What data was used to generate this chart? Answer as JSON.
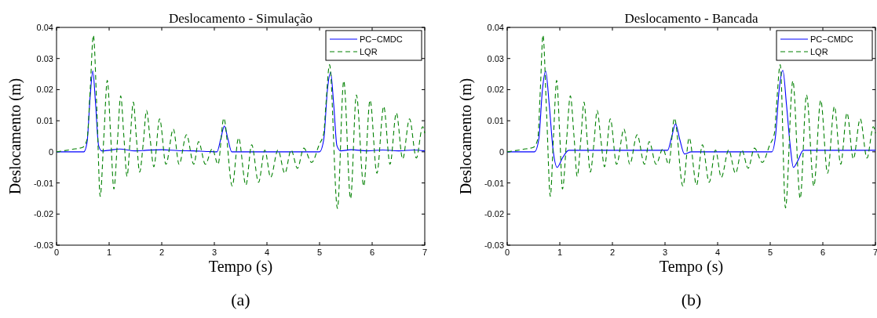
{
  "chart_data": [
    {
      "type": "line",
      "title": "Deslocamento - Simulação",
      "xlabel": "Tempo (s)",
      "ylabel": "Deslocamento (m)",
      "annotations": [
        "(a)"
      ],
      "xlim": [
        0,
        7
      ],
      "xticks": [
        0,
        1,
        2,
        3,
        4,
        5,
        6,
        7
      ],
      "ylim": [
        -0.03,
        0.04
      ],
      "yticks": [
        -0.03,
        -0.02,
        -0.01,
        0,
        0.01,
        0.02,
        0.03,
        0.04
      ],
      "legend": "top right",
      "grid": false,
      "series": [
        {
          "name": "PC−CMDC",
          "color": "#0000ff",
          "line_style": "solid",
          "x": [
            0,
            0.52,
            0.58,
            0.64,
            0.69,
            0.74,
            0.8,
            0.86,
            1.0,
            1.2,
            1.5,
            1.7,
            2.0,
            2.3,
            2.6,
            2.9,
            3.05,
            3.12,
            3.19,
            3.26,
            3.33,
            4,
            5.0,
            5.08,
            5.15,
            5.21,
            5.27,
            5.33,
            5.4,
            5.6,
            5.9,
            6.2,
            6.5,
            6.8,
            7
          ],
          "values": [
            0,
            0,
            0.003,
            0.018,
            0.026,
            0.016,
            0.002,
            0.0003,
            0.0005,
            0.0009,
            0.0003,
            0.0005,
            0.0007,
            0.0004,
            0.0003,
            0.0001,
            0,
            0.004,
            0.0083,
            0.004,
            0,
            0,
            0,
            0.004,
            0.02,
            0.0255,
            0.015,
            0.002,
            0.0003,
            0.0007,
            0.0003,
            0.0006,
            0.0003,
            0.0006,
            0.0003
          ]
        },
        {
          "name": "LQR",
          "color": "#008000",
          "line_style": "dashed",
          "x": [
            0,
            0.3,
            0.5,
            0.58,
            0.64,
            0.7,
            0.77,
            0.83,
            0.9,
            0.965,
            1.03,
            1.09,
            1.16,
            1.22,
            1.28,
            1.34,
            1.4,
            1.46,
            1.52,
            1.58,
            1.65,
            1.71,
            1.78,
            1.85,
            1.96,
            2.08,
            2.22,
            2.33,
            2.47,
            2.61,
            2.7,
            2.83,
            2.96,
            3.07,
            3.18,
            3.34,
            3.46,
            3.6,
            3.71,
            3.84,
            3.96,
            4.07,
            4.21,
            4.34,
            4.46,
            4.58,
            4.7,
            4.85,
            4.99,
            5.08,
            5.12,
            5.19,
            5.34,
            5.46,
            5.59,
            5.7,
            5.84,
            5.96,
            6.09,
            6.22,
            6.34,
            6.46,
            6.58,
            6.71,
            6.84,
            6.96,
            7
          ],
          "values": [
            0,
            0.0008,
            0.0015,
            0.004,
            0.02,
            0.0375,
            0.012,
            -0.0143,
            0.005,
            0.023,
            0.005,
            -0.012,
            0.004,
            0.018,
            0.005,
            -0.0079,
            0.004,
            0.016,
            0.004,
            -0.0065,
            0.003,
            0.0133,
            0.004,
            -0.0048,
            0.0106,
            -0.004,
            0.0073,
            -0.004,
            0.0055,
            -0.004,
            0.0033,
            -0.004,
            0.001,
            -0.004,
            0.0108,
            -0.011,
            0.0045,
            -0.0107,
            0.0023,
            -0.0098,
            0.0006,
            -0.0082,
            0.0006,
            -0.0069,
            0.0006,
            -0.0053,
            0.0012,
            -0.0034,
            0.0022,
            0.006,
            0.015,
            0.028,
            -0.0182,
            0.0228,
            -0.015,
            0.0183,
            -0.011,
            0.0166,
            -0.0069,
            0.0146,
            -0.004,
            0.0125,
            -0.0023,
            0.0106,
            -0.002,
            0.0081,
            0.006
          ]
        }
      ]
    },
    {
      "type": "line",
      "title": "Deslocamento - Bancada",
      "xlabel": "Tempo (s)",
      "ylabel": "Deslocamento (m)",
      "annotations": [
        "(b)"
      ],
      "xlim": [
        0,
        7
      ],
      "xticks": [
        0,
        1,
        2,
        3,
        4,
        5,
        6,
        7
      ],
      "ylim": [
        -0.03,
        0.04
      ],
      "yticks": [
        -0.03,
        -0.02,
        -0.01,
        0,
        0.01,
        0.02,
        0.03,
        0.04
      ],
      "legend": "top right",
      "grid": false,
      "series": [
        {
          "name": "PC−CMDC",
          "color": "#0000ff",
          "line_style": "solid",
          "x": [
            0,
            0.52,
            0.6,
            0.67,
            0.73,
            0.8,
            0.87,
            0.95,
            1.05,
            1.17,
            3.05,
            3.13,
            3.2,
            3.28,
            3.37,
            3.5,
            5.03,
            5.1,
            5.17,
            5.24,
            5.31,
            5.38,
            5.44,
            5.52,
            5.63,
            7
          ],
          "values": [
            0,
            0,
            0.004,
            0.02,
            0.026,
            0.015,
            0.001,
            -0.005,
            -0.002,
            0.0005,
            0.0005,
            0.005,
            0.009,
            0.004,
            -0.0007,
            0,
            0,
            0.005,
            0.02,
            0.0262,
            0.015,
            0.002,
            -0.005,
            -0.003,
            0.0005,
            0.0005
          ]
        },
        {
          "name": "LQR",
          "color": "#008000",
          "line_style": "dashed",
          "x": [
            0,
            0.3,
            0.5,
            0.58,
            0.63,
            0.68,
            0.75,
            0.82,
            0.88,
            0.94,
            1.0,
            1.05,
            1.13,
            1.2,
            1.27,
            1.33,
            1.4,
            1.46,
            1.52,
            1.58,
            1.65,
            1.71,
            1.78,
            1.85,
            1.96,
            2.08,
            2.22,
            2.33,
            2.47,
            2.61,
            2.7,
            2.83,
            2.96,
            3.07,
            3.18,
            3.34,
            3.46,
            3.6,
            3.71,
            3.84,
            3.96,
            4.07,
            4.21,
            4.34,
            4.46,
            4.58,
            4.7,
            4.85,
            4.99,
            5.08,
            5.12,
            5.19,
            5.29,
            5.43,
            5.57,
            5.69,
            5.83,
            5.96,
            6.09,
            6.22,
            6.34,
            6.46,
            6.58,
            6.71,
            6.84,
            6.96,
            7
          ],
          "values": [
            0,
            0.0008,
            0.0015,
            0.004,
            0.02,
            0.0375,
            0.012,
            -0.0143,
            0.005,
            0.023,
            0.005,
            -0.012,
            0.004,
            0.018,
            0.005,
            -0.0079,
            0.004,
            0.016,
            0.004,
            -0.0065,
            0.003,
            0.0133,
            0.004,
            -0.0048,
            0.0106,
            -0.004,
            0.0073,
            -0.004,
            0.0055,
            -0.004,
            0.0033,
            -0.004,
            0.001,
            -0.004,
            0.0108,
            -0.011,
            0.0045,
            -0.0107,
            0.0023,
            -0.0098,
            0.0006,
            -0.0082,
            0.0006,
            -0.0069,
            0.0006,
            -0.0053,
            0.0012,
            -0.0034,
            0.0022,
            0.006,
            0.015,
            0.028,
            -0.018,
            0.0228,
            -0.015,
            0.0183,
            -0.011,
            0.0166,
            -0.0069,
            0.0146,
            -0.004,
            0.0125,
            -0.0023,
            0.0106,
            -0.002,
            0.0081,
            0.006
          ]
        }
      ]
    }
  ]
}
